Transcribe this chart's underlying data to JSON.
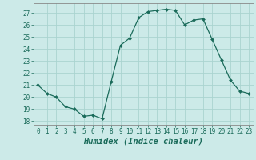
{
  "x": [
    0,
    1,
    2,
    3,
    4,
    5,
    6,
    7,
    8,
    9,
    10,
    11,
    12,
    13,
    14,
    15,
    16,
    17,
    18,
    19,
    20,
    21,
    22,
    23
  ],
  "y": [
    21.0,
    20.3,
    20.0,
    19.2,
    19.0,
    18.4,
    18.5,
    18.2,
    21.3,
    24.3,
    24.9,
    26.6,
    27.1,
    27.2,
    27.3,
    27.2,
    26.0,
    26.4,
    26.5,
    24.8,
    23.1,
    21.4,
    20.5,
    20.3
  ],
  "line_color": "#1a6b5a",
  "marker": "D",
  "marker_size": 2.0,
  "bg_color": "#cceae8",
  "grid_color": "#aad4d0",
  "xlabel": "Humidex (Indice chaleur)",
  "ylim": [
    17.7,
    27.8
  ],
  "xlim": [
    -0.5,
    23.5
  ],
  "yticks": [
    18,
    19,
    20,
    21,
    22,
    23,
    24,
    25,
    26,
    27
  ],
  "xticks": [
    0,
    1,
    2,
    3,
    4,
    5,
    6,
    7,
    8,
    9,
    10,
    11,
    12,
    13,
    14,
    15,
    16,
    17,
    18,
    19,
    20,
    21,
    22,
    23
  ],
  "tick_fontsize": 5.5,
  "xlabel_fontsize": 7.5,
  "linewidth": 0.9
}
